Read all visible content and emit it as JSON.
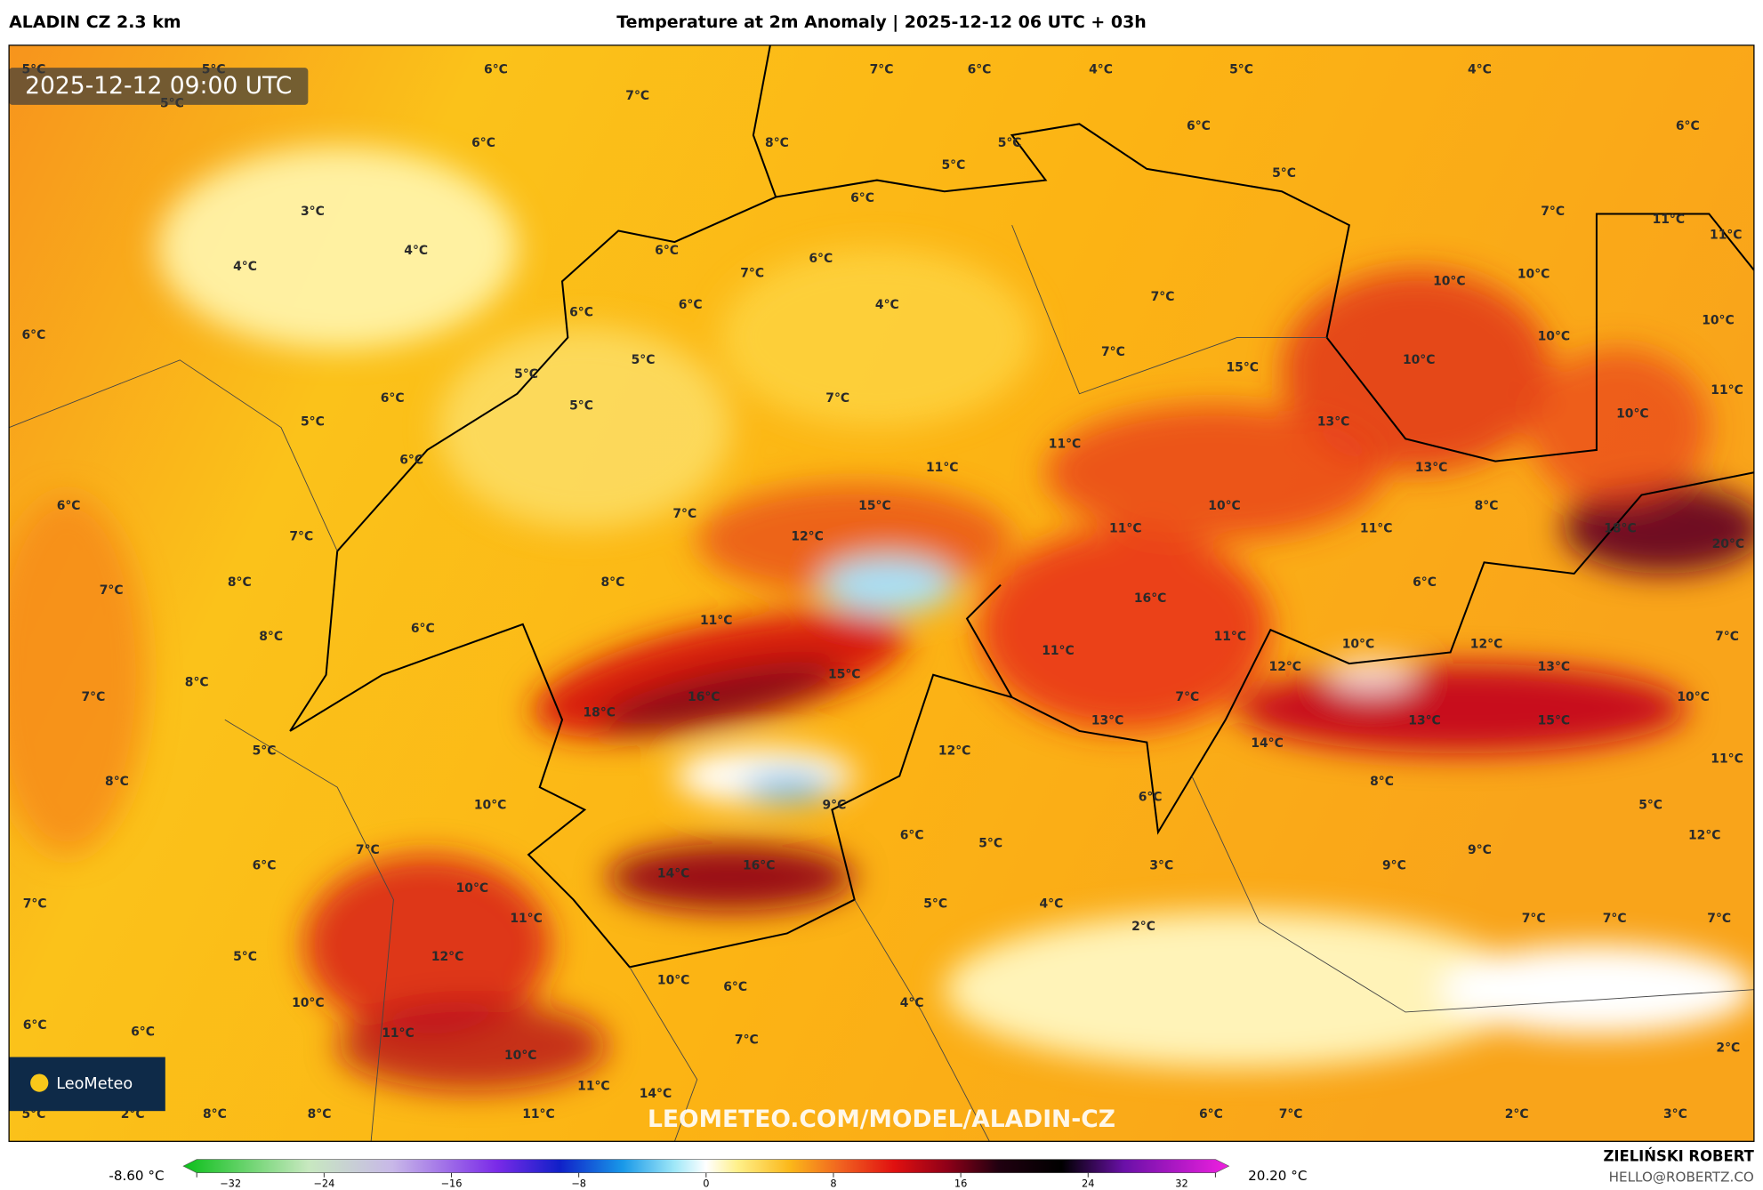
{
  "header": {
    "model": "ALADIN CZ 2.3 km",
    "title": "Temperature at 2m Anomaly | 2025-12-12 06 UTC + 03h"
  },
  "map": {
    "timestamp": "2025-12-12 09:00 UTC",
    "logo": "LeoMeteo",
    "watermark": "LEOMETEO.COM/MODEL/ALADIN-CZ",
    "labels": [
      "5°C",
      "5°C",
      "6°C",
      "7°C",
      "7°C",
      "6°C",
      "4°C",
      "5°C",
      "4°C",
      "6°C",
      "5°C",
      "6°C",
      "8°C",
      "5°C",
      "6°C",
      "5°C",
      "5°C",
      "6°C",
      "3°C",
      "7°C",
      "11°C",
      "11°C",
      "4°C",
      "6°C",
      "4°C",
      "7°C",
      "6°C",
      "10°C",
      "10°C",
      "6°C",
      "6°C",
      "6°C",
      "4°C",
      "7°C",
      "10°C",
      "10°C",
      "5°C",
      "5°C",
      "7°C",
      "15°C",
      "10°C",
      "6°C",
      "5°C",
      "7°C",
      "11°C",
      "5°C",
      "13°C",
      "10°C",
      "6°C",
      "11°C",
      "11°C",
      "13°C",
      "6°C",
      "15°C",
      "7°C",
      "10°C",
      "8°C",
      "12°C",
      "11°C",
      "11°C",
      "18°C",
      "20°C",
      "7°C",
      "7°C",
      "8°C",
      "8°C",
      "16°C",
      "6°C",
      "6°C",
      "8°C",
      "11°C",
      "11°C",
      "11°C",
      "10°C",
      "12°C",
      "7°C",
      "12°C",
      "13°C",
      "8°C",
      "15°C",
      "7°C",
      "16°C",
      "7°C",
      "10°C",
      "18°C",
      "13°C",
      "13°C",
      "15°C",
      "5°C",
      "12°C",
      "14°C",
      "11°C",
      "8°C",
      "8°C",
      "6°C",
      "10°C",
      "9°C",
      "5°C",
      "7°C",
      "6°C",
      "5°C",
      "12°C",
      "6°C",
      "14°C",
      "16°C",
      "3°C",
      "9°C",
      "9°C",
      "10°C",
      "7°C",
      "5°C",
      "4°C",
      "11°C",
      "2°C",
      "7°C",
      "7°C",
      "7°C",
      "12°C",
      "5°C",
      "10°C",
      "6°C",
      "4°C",
      "10°C",
      "6°C",
      "6°C",
      "11°C",
      "7°C",
      "10°C",
      "2°C",
      "11°C",
      "14°C",
      "5°C",
      "2°C",
      "8°C",
      "8°C",
      "11°C",
      "6°C",
      "7°C",
      "2°C",
      "3°C"
    ]
  },
  "colorbar": {
    "min": "-8.60 °C",
    "max": "20.20 °C",
    "ticks": [
      "−32",
      "−24",
      "−16",
      "−8",
      "0",
      "8",
      "16",
      "24",
      "32"
    ]
  },
  "footer": {
    "author": "ZIELIŃSKI ROBERT",
    "contact": "HELLO@ROBERTZ.CO"
  }
}
